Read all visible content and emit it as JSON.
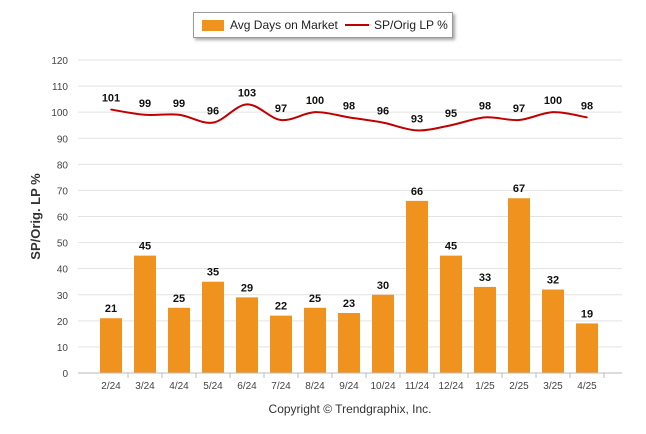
{
  "chart_data": {
    "type": "bar",
    "categories": [
      "2/24",
      "3/24",
      "4/24",
      "5/24",
      "6/24",
      "7/24",
      "8/24",
      "9/24",
      "10/24",
      "11/24",
      "12/24",
      "1/25",
      "2/25",
      "3/25",
      "4/25"
    ],
    "series": [
      {
        "name": "Avg Days on Market",
        "type": "bar",
        "color": "#f0921e",
        "values": [
          21,
          45,
          25,
          35,
          29,
          22,
          25,
          23,
          30,
          66,
          45,
          33,
          67,
          32,
          19
        ]
      },
      {
        "name": "SP/Orig LP %",
        "type": "line",
        "color": "#c00000",
        "values": [
          101,
          99,
          99,
          96,
          103,
          97,
          100,
          98,
          96,
          93,
          95,
          98,
          97,
          100,
          98
        ]
      }
    ],
    "ylabel": "SP/Orig. LP %",
    "ylim": [
      0,
      120
    ],
    "yticks": [
      0,
      10,
      20,
      30,
      40,
      50,
      60,
      70,
      80,
      90,
      100,
      110,
      120
    ],
    "grid": true,
    "legend_position": "top-center"
  },
  "copyright": "Copyright © Trendgraphix, Inc."
}
